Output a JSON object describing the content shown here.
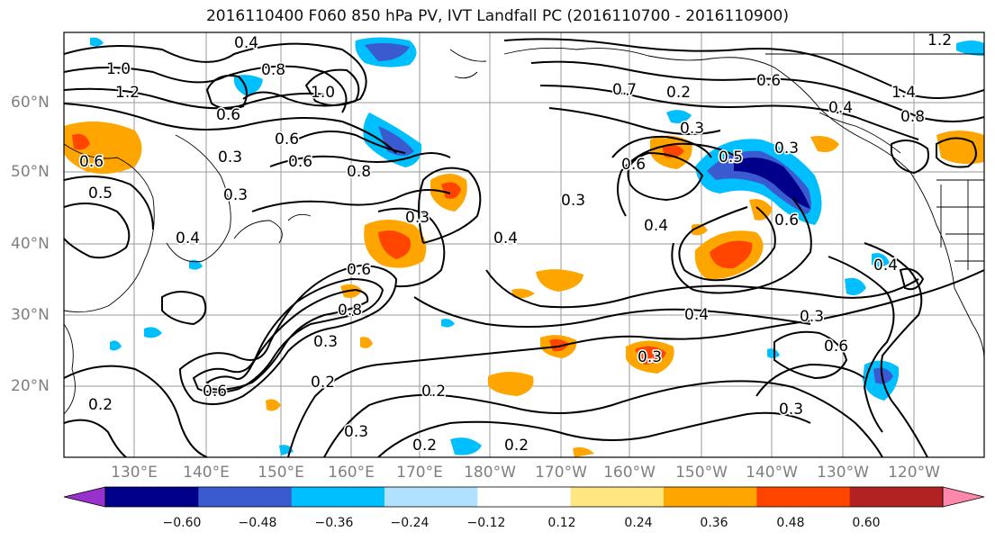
{
  "title": "2016110400 F060 850 hPa PV, IVT Landfall PC (2016110700 - 2016110900)",
  "lat_labels": [
    "60°N",
    "50°N",
    "40°N",
    "30°N",
    "20°N"
  ],
  "lon_labels": [
    "130°E",
    "140°E",
    "150°E",
    "160°E",
    "170°E",
    "180°W",
    "170°W",
    "160°W",
    "150°W",
    "140°W",
    "130°W",
    "120°W"
  ],
  "colorbar": {
    "labels": [
      "−0.60",
      "−0.48",
      "−0.36",
      "−0.24",
      "−0.12",
      "0.12",
      "0.24",
      "0.36",
      "0.48",
      "0.60"
    ],
    "colors": [
      "#9932cc",
      "#00008b",
      "#3a5bd0",
      "#00bfff",
      "#b0e2ff",
      "#ffffff",
      "#ffe680",
      "#ffa500",
      "#ff4500",
      "#b22222",
      "#ff88aa"
    ]
  },
  "contour_labels": [
    "0.4",
    "1.0",
    "1.2",
    "0.8",
    "1.0",
    "0.6",
    "0.3",
    "0.3",
    "0.5",
    "0.6",
    "0.8",
    "0.6",
    "0.3",
    "0.4",
    "0.3",
    "0.6",
    "0.6",
    "0.8",
    "0.3",
    "0.2",
    "0.2",
    "0.3",
    "0.2",
    "0.2",
    "0.4",
    "0.3",
    "0.6",
    "0.4",
    "0.3",
    "0.6",
    "0.5",
    "0.3",
    "0.3",
    "0.6",
    "0.4",
    "0.4",
    "0.6",
    "0.2",
    "0.4",
    "0.8",
    "1.4",
    "1.2",
    "0.6",
    "0.7",
    "0.2",
    "0.3"
  ]
}
